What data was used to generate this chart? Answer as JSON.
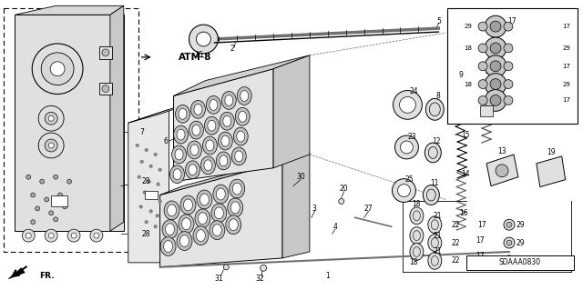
{
  "bg_color": "#ffffff",
  "fig_width": 6.4,
  "fig_height": 3.19,
  "dpi": 100,
  "label_ATM8": "ATM-8",
  "label_FR": "FR.",
  "label_SDAAA0830": "SDAAA0830",
  "gray_light": "#e0e0e0",
  "gray_mid": "#b0b0b0",
  "gray_dark": "#707070",
  "black": "#000000",
  "white": "#ffffff"
}
